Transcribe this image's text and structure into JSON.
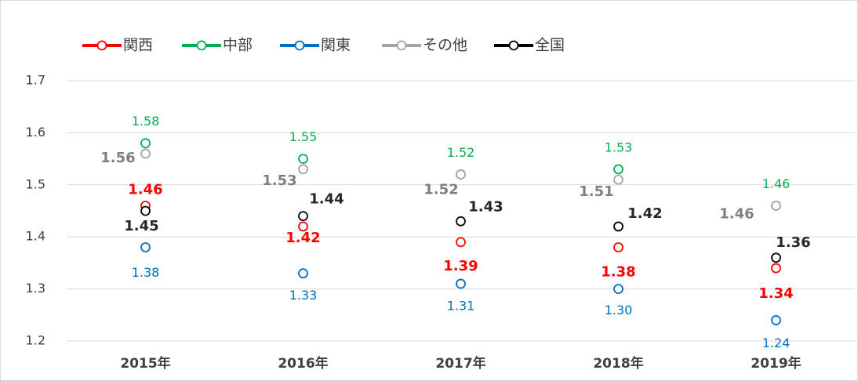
{
  "chart_data": {
    "type": "line",
    "categories": [
      "2015年",
      "2016年",
      "2017年",
      "2018年",
      "2019年"
    ],
    "series": [
      {
        "name": "関西",
        "color": "#ff0000",
        "values": [
          1.46,
          1.42,
          1.39,
          1.38,
          1.34
        ]
      },
      {
        "name": "中部",
        "color": "#00b050",
        "values": [
          1.58,
          1.55,
          1.52,
          1.53,
          1.46
        ]
      },
      {
        "name": "関東",
        "color": "#0070c0",
        "values": [
          1.38,
          1.33,
          1.31,
          1.3,
          1.24
        ],
        "value_labels": [
          "1.38",
          "1.33",
          "1.31",
          "1.30",
          "1.24"
        ]
      },
      {
        "name": "その他",
        "color": "#a5a5a5",
        "values": [
          1.56,
          1.53,
          1.52,
          1.51,
          1.46
        ]
      },
      {
        "name": "全国",
        "color": "#000000",
        "values": [
          1.45,
          1.44,
          1.43,
          1.42,
          1.36
        ]
      }
    ],
    "ylim": [
      1.2,
      1.7
    ],
    "yticks": [
      1.2,
      1.3,
      1.4,
      1.5,
      1.6,
      1.7
    ],
    "grid": true,
    "legend": "top-left"
  }
}
